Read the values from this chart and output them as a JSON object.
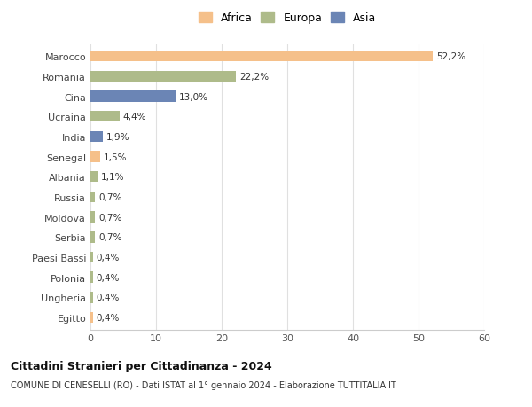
{
  "categories": [
    "Marocco",
    "Romania",
    "Cina",
    "Ucraina",
    "India",
    "Senegal",
    "Albania",
    "Russia",
    "Moldova",
    "Serbia",
    "Paesi Bassi",
    "Polonia",
    "Ungheria",
    "Egitto"
  ],
  "values": [
    52.2,
    22.2,
    13.0,
    4.4,
    1.9,
    1.5,
    1.1,
    0.7,
    0.7,
    0.7,
    0.4,
    0.4,
    0.4,
    0.4
  ],
  "labels": [
    "52,2%",
    "22,2%",
    "13,0%",
    "4,4%",
    "1,9%",
    "1,5%",
    "1,1%",
    "0,7%",
    "0,7%",
    "0,7%",
    "0,4%",
    "0,4%",
    "0,4%",
    "0,4%"
  ],
  "colors": [
    "#F5C08A",
    "#AEBB8A",
    "#6B85B5",
    "#AEBB8A",
    "#6B85B5",
    "#F5C08A",
    "#AEBB8A",
    "#AEBB8A",
    "#AEBB8A",
    "#AEBB8A",
    "#AEBB8A",
    "#AEBB8A",
    "#AEBB8A",
    "#F5C08A"
  ],
  "legend_labels": [
    "Africa",
    "Europa",
    "Asia"
  ],
  "legend_colors": [
    "#F5C08A",
    "#AEBB8A",
    "#6B85B5"
  ],
  "title": "Cittadini Stranieri per Cittadinanza - 2024",
  "subtitle": "COMUNE DI CENESELLI (RO) - Dati ISTAT al 1° gennaio 2024 - Elaborazione TUTTITALIA.IT",
  "xlim": [
    0,
    60
  ],
  "xticks": [
    0,
    10,
    20,
    30,
    40,
    50,
    60
  ],
  "background_color": "#ffffff",
  "grid_color": "#e0e0e0"
}
